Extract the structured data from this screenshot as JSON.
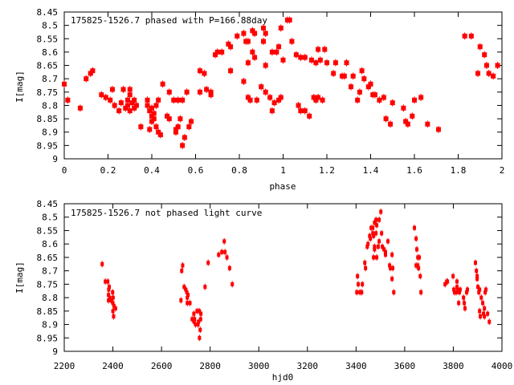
{
  "chart_data": [
    {
      "type": "scatter",
      "title": "175825-1526.7 phased with P=166.88day",
      "xlabel": "phase",
      "ylabel": "I[mag]",
      "xlim": [
        0,
        2
      ],
      "ylim": [
        8.45,
        9
      ],
      "y_inverted": true,
      "grid": false,
      "legend_position": "top-left",
      "xticks": [
        "0",
        "0.2",
        "0.4",
        "0.6",
        "0.8",
        "1",
        "1.2",
        "1.4",
        "1.6",
        "1.8",
        "2"
      ],
      "yticks": [
        "8.45",
        "8.5",
        "8.55",
        "8.6",
        "8.65",
        "8.7",
        "8.75",
        "8.8",
        "8.85",
        "8.9",
        "8.95",
        "9"
      ],
      "color": "#ff0000",
      "points": [
        [
          0.0,
          8.72
        ],
        [
          0.016,
          8.78
        ],
        [
          0.073,
          8.81
        ],
        [
          0.1,
          8.7
        ],
        [
          0.12,
          8.68
        ],
        [
          0.13,
          8.67
        ],
        [
          0.17,
          8.76
        ],
        [
          0.19,
          8.77
        ],
        [
          0.21,
          8.78
        ],
        [
          0.22,
          8.74
        ],
        [
          0.23,
          8.8
        ],
        [
          0.25,
          8.82
        ],
        [
          0.26,
          8.79
        ],
        [
          0.27,
          8.74
        ],
        [
          0.28,
          8.81
        ],
        [
          0.29,
          8.78
        ],
        [
          0.29,
          8.8
        ],
        [
          0.3,
          8.74
        ],
        [
          0.3,
          8.82
        ],
        [
          0.3,
          8.76
        ],
        [
          0.31,
          8.79
        ],
        [
          0.32,
          8.78
        ],
        [
          0.32,
          8.81
        ],
        [
          0.33,
          8.8
        ],
        [
          0.35,
          8.88
        ],
        [
          0.38,
          8.78
        ],
        [
          0.38,
          8.8
        ],
        [
          0.39,
          8.82
        ],
        [
          0.39,
          8.89
        ],
        [
          0.4,
          8.84
        ],
        [
          0.4,
          8.81
        ],
        [
          0.4,
          8.86
        ],
        [
          0.41,
          8.83
        ],
        [
          0.41,
          8.85
        ],
        [
          0.42,
          8.88
        ],
        [
          0.42,
          8.8
        ],
        [
          0.43,
          8.78
        ],
        [
          0.43,
          8.9
        ],
        [
          0.44,
          8.91
        ],
        [
          0.45,
          8.72
        ],
        [
          0.47,
          8.84
        ],
        [
          0.48,
          8.75
        ],
        [
          0.48,
          8.85
        ],
        [
          0.5,
          8.78
        ],
        [
          0.51,
          8.9
        ],
        [
          0.51,
          8.89
        ],
        [
          0.52,
          8.88
        ],
        [
          0.52,
          8.78
        ],
        [
          0.53,
          8.85
        ],
        [
          0.54,
          8.78
        ],
        [
          0.54,
          8.95
        ],
        [
          0.55,
          8.92
        ],
        [
          0.56,
          8.75
        ],
        [
          0.57,
          8.88
        ],
        [
          0.58,
          8.86
        ],
        [
          0.62,
          8.75
        ],
        [
          0.62,
          8.67
        ],
        [
          0.64,
          8.68
        ],
        [
          0.65,
          8.74
        ],
        [
          0.67,
          8.75
        ],
        [
          0.67,
          8.76
        ],
        [
          0.69,
          8.61
        ],
        [
          0.7,
          8.6
        ],
        [
          0.72,
          8.6
        ],
        [
          0.75,
          8.57
        ],
        [
          0.76,
          8.67
        ],
        [
          0.76,
          8.58
        ],
        [
          0.79,
          8.54
        ],
        [
          0.82,
          8.71
        ],
        [
          0.82,
          8.53
        ],
        [
          0.83,
          8.56
        ],
        [
          0.84,
          8.77
        ],
        [
          0.84,
          8.56
        ],
        [
          0.84,
          8.64
        ],
        [
          0.85,
          8.78
        ],
        [
          0.86,
          8.52
        ],
        [
          0.86,
          8.6
        ],
        [
          0.87,
          8.53
        ],
        [
          0.87,
          8.62
        ],
        [
          0.88,
          8.78
        ],
        [
          0.9,
          8.73
        ],
        [
          0.91,
          8.56
        ],
        [
          0.91,
          8.51
        ],
        [
          0.92,
          8.75
        ],
        [
          0.92,
          8.65
        ],
        [
          0.92,
          8.53
        ],
        [
          0.94,
          8.77
        ],
        [
          0.95,
          8.82
        ],
        [
          0.95,
          8.6
        ],
        [
          0.96,
          8.79
        ],
        [
          0.97,
          8.6
        ],
        [
          0.98,
          8.78
        ],
        [
          0.98,
          8.58
        ],
        [
          0.99,
          8.51
        ],
        [
          0.99,
          8.77
        ],
        [
          1.0,
          8.63
        ],
        [
          1.02,
          8.48
        ],
        [
          1.03,
          8.48
        ],
        [
          1.04,
          8.56
        ],
        [
          1.06,
          8.61
        ],
        [
          1.07,
          8.8
        ],
        [
          1.08,
          8.62
        ],
        [
          1.08,
          8.82
        ],
        [
          1.1,
          8.62
        ],
        [
          1.1,
          8.82
        ],
        [
          1.12,
          8.84
        ],
        [
          1.13,
          8.63
        ],
        [
          1.14,
          8.77
        ],
        [
          1.15,
          8.64
        ],
        [
          1.15,
          8.78
        ],
        [
          1.16,
          8.59
        ],
        [
          1.16,
          8.77
        ],
        [
          1.17,
          8.63
        ],
        [
          1.18,
          8.78
        ],
        [
          1.19,
          8.59
        ],
        [
          1.2,
          8.64
        ],
        [
          1.23,
          8.68
        ],
        [
          1.24,
          8.64
        ],
        [
          1.27,
          8.69
        ],
        [
          1.28,
          8.69
        ],
        [
          1.29,
          8.64
        ],
        [
          1.31,
          8.73
        ],
        [
          1.32,
          8.69
        ],
        [
          1.34,
          8.78
        ],
        [
          1.35,
          8.75
        ],
        [
          1.36,
          8.67
        ],
        [
          1.37,
          8.7
        ],
        [
          1.39,
          8.73
        ],
        [
          1.4,
          8.72
        ],
        [
          1.41,
          8.76
        ],
        [
          1.42,
          8.76
        ],
        [
          1.44,
          8.78
        ],
        [
          1.46,
          8.77
        ],
        [
          1.47,
          8.85
        ],
        [
          1.49,
          8.87
        ],
        [
          1.5,
          8.79
        ],
        [
          1.55,
          8.81
        ],
        [
          1.56,
          8.86
        ],
        [
          1.57,
          8.87
        ],
        [
          1.59,
          8.84
        ],
        [
          1.6,
          8.78
        ],
        [
          1.63,
          8.77
        ],
        [
          1.66,
          8.87
        ],
        [
          1.71,
          8.89
        ],
        [
          1.83,
          8.54
        ],
        [
          1.86,
          8.54
        ],
        [
          1.89,
          8.68
        ],
        [
          1.9,
          8.58
        ],
        [
          1.92,
          8.61
        ],
        [
          1.93,
          8.65
        ],
        [
          1.94,
          8.68
        ],
        [
          1.96,
          8.69
        ],
        [
          1.98,
          8.65
        ]
      ]
    },
    {
      "type": "scatter",
      "title": "175825-1526.7 not phased light curve",
      "xlabel": "hjd0",
      "ylabel": "I[mag]",
      "xlim": [
        2200,
        4000
      ],
      "ylim": [
        8.45,
        9
      ],
      "y_inverted": true,
      "grid": false,
      "legend_position": "top-left",
      "xticks": [
        "2200",
        "2400",
        "2600",
        "2800",
        "3000",
        "3200",
        "3400",
        "3600",
        "3800",
        "4000"
      ],
      "yticks": [
        "8.45",
        "8.5",
        "8.55",
        "8.6",
        "8.65",
        "8.7",
        "8.75",
        "8.8",
        "8.85",
        "8.9",
        "8.95",
        "9"
      ],
      "color": "#ff0000",
      "points": [
        [
          2356,
          8.675
        ],
        [
          2369,
          8.74
        ],
        [
          2379,
          8.74
        ],
        [
          2385,
          8.76
        ],
        [
          2383,
          8.77
        ],
        [
          2382,
          8.79
        ],
        [
          2387,
          8.8
        ],
        [
          2399,
          8.78
        ],
        [
          2401,
          8.8
        ],
        [
          2382,
          8.81
        ],
        [
          2392,
          8.81
        ],
        [
          2400,
          8.82
        ],
        [
          2404,
          8.83
        ],
        [
          2411,
          8.84
        ],
        [
          2400,
          8.85
        ],
        [
          2403,
          8.87
        ],
        [
          2687,
          8.68
        ],
        [
          2683,
          8.7
        ],
        [
          2693,
          8.76
        ],
        [
          2700,
          8.77
        ],
        [
          2704,
          8.78
        ],
        [
          2709,
          8.79
        ],
        [
          2706,
          8.8
        ],
        [
          2680,
          8.81
        ],
        [
          2706,
          8.82
        ],
        [
          2717,
          8.82
        ],
        [
          2733,
          8.86
        ],
        [
          2746,
          8.85
        ],
        [
          2755,
          8.85
        ],
        [
          2762,
          8.86
        ],
        [
          2761,
          8.88
        ],
        [
          2726,
          8.88
        ],
        [
          2736,
          8.88
        ],
        [
          2752,
          8.89
        ],
        [
          2734,
          8.89
        ],
        [
          2740,
          8.9
        ],
        [
          2750,
          8.9
        ],
        [
          2759,
          8.92
        ],
        [
          2756,
          8.95
        ],
        [
          2779,
          8.76
        ],
        [
          2792,
          8.67
        ],
        [
          2835,
          8.64
        ],
        [
          2848,
          8.63
        ],
        [
          2858,
          8.59
        ],
        [
          2861,
          8.63
        ],
        [
          2869,
          8.65
        ],
        [
          2880,
          8.69
        ],
        [
          2891,
          8.75
        ],
        [
          3403,
          8.78
        ],
        [
          3406,
          8.72
        ],
        [
          3409,
          8.75
        ],
        [
          3416,
          8.78
        ],
        [
          3423,
          8.78
        ],
        [
          3426,
          8.75
        ],
        [
          3436,
          8.67
        ],
        [
          3439,
          8.69
        ],
        [
          3446,
          8.61
        ],
        [
          3449,
          8.6
        ],
        [
          3456,
          8.57
        ],
        [
          3459,
          8.58
        ],
        [
          3462,
          8.54
        ],
        [
          3469,
          8.54
        ],
        [
          3469,
          8.56
        ],
        [
          3472,
          8.65
        ],
        [
          3472,
          8.57
        ],
        [
          3476,
          8.52
        ],
        [
          3476,
          8.61
        ],
        [
          3476,
          8.62
        ],
        [
          3482,
          8.51
        ],
        [
          3482,
          8.56
        ],
        [
          3485,
          8.53
        ],
        [
          3485,
          8.65
        ],
        [
          3491,
          8.61
        ],
        [
          3495,
          8.51
        ],
        [
          3495,
          8.59
        ],
        [
          3502,
          8.48
        ],
        [
          3505,
          8.56
        ],
        [
          3508,
          8.61
        ],
        [
          3515,
          8.62
        ],
        [
          3521,
          8.63
        ],
        [
          3521,
          8.64
        ],
        [
          3531,
          8.59
        ],
        [
          3538,
          8.68
        ],
        [
          3541,
          8.69
        ],
        [
          3548,
          8.64
        ],
        [
          3551,
          8.69
        ],
        [
          3548,
          8.73
        ],
        [
          3555,
          8.78
        ],
        [
          3640,
          8.54
        ],
        [
          3647,
          8.58
        ],
        [
          3650,
          8.62
        ],
        [
          3654,
          8.65
        ],
        [
          3660,
          8.65
        ],
        [
          3647,
          8.68
        ],
        [
          3654,
          8.68
        ],
        [
          3657,
          8.69
        ],
        [
          3664,
          8.72
        ],
        [
          3667,
          8.78
        ],
        [
          3766,
          8.75
        ],
        [
          3773,
          8.74
        ],
        [
          3776,
          8.74
        ],
        [
          3799,
          8.72
        ],
        [
          3802,
          8.77
        ],
        [
          3805,
          8.78
        ],
        [
          3812,
          8.78
        ],
        [
          3815,
          8.74
        ],
        [
          3815,
          8.76
        ],
        [
          3818,
          8.77
        ],
        [
          3825,
          8.78
        ],
        [
          3828,
          8.77
        ],
        [
          3822,
          8.82
        ],
        [
          3842,
          8.8
        ],
        [
          3845,
          8.82
        ],
        [
          3848,
          8.84
        ],
        [
          3855,
          8.78
        ],
        [
          3858,
          8.77
        ],
        [
          3855,
          8.78
        ],
        [
          3891,
          8.67
        ],
        [
          3895,
          8.7
        ],
        [
          3898,
          8.72
        ],
        [
          3898,
          8.73
        ],
        [
          3901,
          8.76
        ],
        [
          3905,
          8.78
        ],
        [
          3908,
          8.77
        ],
        [
          3915,
          8.8
        ],
        [
          3921,
          8.82
        ],
        [
          3928,
          8.84
        ],
        [
          3908,
          8.85
        ],
        [
          3911,
          8.87
        ],
        [
          3924,
          8.86
        ],
        [
          3928,
          8.87
        ],
        [
          3931,
          8.78
        ],
        [
          3934,
          8.77
        ],
        [
          3941,
          8.86
        ],
        [
          3948,
          8.89
        ]
      ]
    }
  ]
}
